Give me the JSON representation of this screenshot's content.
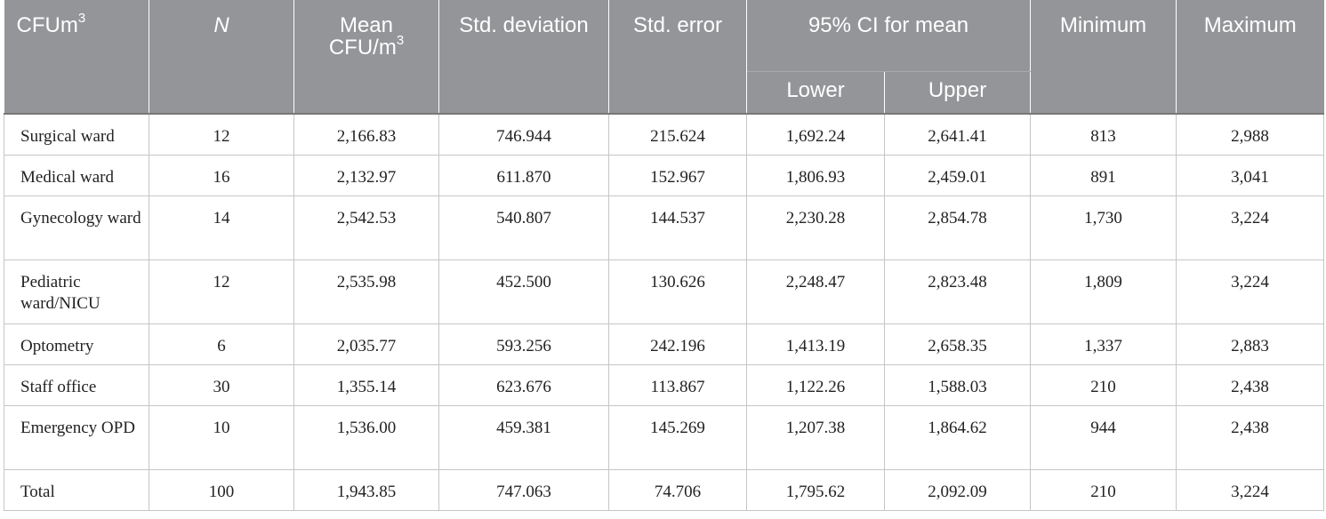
{
  "table": {
    "headers": {
      "group": "CFUm",
      "group_sup": "3",
      "n": "N",
      "mean_line1": "Mean",
      "mean_line2": "CFU/m",
      "mean_sup": "3",
      "std_dev": "Std. deviation",
      "std_err": "Std. error",
      "ci": "95% CI for mean",
      "lower": "Lower",
      "upper": "Upper",
      "minimum": "Minimum",
      "maximum": "Maximum"
    },
    "rows": [
      {
        "label": "Surgical ward",
        "n": "12",
        "mean": "2,166.83",
        "sd": "746.944",
        "se": "215.624",
        "lower": "1,692.24",
        "upper": "2,641.41",
        "min": "813",
        "max": "2,988"
      },
      {
        "label": "Medical ward",
        "n": "16",
        "mean": "2,132.97",
        "sd": "611.870",
        "se": "152.967",
        "lower": "1,806.93",
        "upper": "2,459.01",
        "min": "891",
        "max": "3,041"
      },
      {
        "label": "Gynecology ward",
        "n": "14",
        "mean": "2,542.53",
        "sd": "540.807",
        "se": "144.537",
        "lower": "2,230.28",
        "upper": "2,854.78",
        "min": "1,730",
        "max": "3,224"
      },
      {
        "label": "Pediatric ward/NICU",
        "n": "12",
        "mean": "2,535.98",
        "sd": "452.500",
        "se": "130.626",
        "lower": "2,248.47",
        "upper": "2,823.48",
        "min": "1,809",
        "max": "3,224"
      },
      {
        "label": "Optometry",
        "n": "6",
        "mean": "2,035.77",
        "sd": "593.256",
        "se": "242.196",
        "lower": "1,413.19",
        "upper": "2,658.35",
        "min": "1,337",
        "max": "2,883"
      },
      {
        "label": "Staff office",
        "n": "30",
        "mean": "1,355.14",
        "sd": "623.676",
        "se": "113.867",
        "lower": "1,122.26",
        "upper": "1,588.03",
        "min": "210",
        "max": "2,438"
      },
      {
        "label": "Emergency OPD",
        "n": "10",
        "mean": "1,536.00",
        "sd": "459.381",
        "se": "145.269",
        "lower": "1,207.38",
        "upper": "1,864.62",
        "min": "944",
        "max": "2,438"
      },
      {
        "label": "Total",
        "n": "100",
        "mean": "1,943.85",
        "sd": "747.063",
        "se": "74.706",
        "lower": "1,795.62",
        "upper": "2,092.09",
        "min": "210",
        "max": "3,224"
      }
    ]
  }
}
